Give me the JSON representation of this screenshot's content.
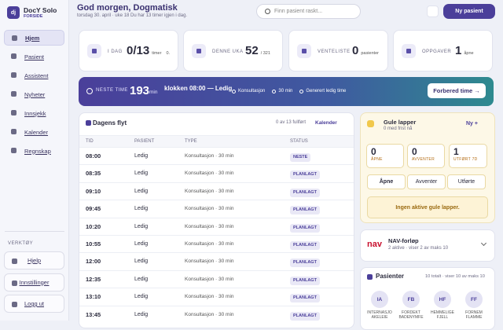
{
  "sidebar": {
    "logo": "dj",
    "app_name": "DocY Solo",
    "section": "FORSIDE",
    "nav": [
      "Hjem",
      "Pasient",
      "Assistent",
      "Nyheter",
      "Innsjekk",
      "Kalender",
      "Regnskap"
    ],
    "tools_heading": "VERKTØY",
    "tools": [
      "Hjelp",
      "Innstillinger",
      "Logg ut"
    ]
  },
  "header": {
    "greeting": "God morgen, Dogmatisk",
    "subtitle": "torsdag 30. april · uke 18 Du har 13 timer igjen i dag.",
    "search_placeholder": "Finn pasient raskt...",
    "new_patient": "Ny pasient"
  },
  "stats": [
    {
      "label": "I DAG",
      "value": "0/13",
      "unit": "timer",
      "extra": "0."
    },
    {
      "label": "DENNE UKA",
      "value": "52",
      "unit": "/ 321"
    },
    {
      "label": "VENTELISTE",
      "value": "0",
      "unit": "pasienter"
    },
    {
      "label": "OPPGAVER",
      "value": "1",
      "unit": "åpne"
    }
  ],
  "next": {
    "label": "NESTE TIME",
    "minutes": "193",
    "unit": "min",
    "title": "klokken 08:00 — Ledig",
    "tags": [
      "Konsultasjon",
      "30 min",
      "Generert ledig time"
    ],
    "button": "Forbered time →"
  },
  "flow": {
    "title": "Dagens flyt",
    "progress": "0 av 13 fullført",
    "calendar_link": "Kalender",
    "columns": [
      "TID",
      "PASIENT",
      "TYPE",
      "STATUS"
    ],
    "rows": [
      [
        "08:00",
        "Ledig",
        "Konsultasjon · 30 min",
        "NESTE"
      ],
      [
        "08:35",
        "Ledig",
        "Konsultasjon · 30 min",
        "PLANLAGT"
      ],
      [
        "09:10",
        "Ledig",
        "Konsultasjon · 30 min",
        "PLANLAGT"
      ],
      [
        "09:45",
        "Ledig",
        "Konsultasjon · 30 min",
        "PLANLAGT"
      ],
      [
        "10:20",
        "Ledig",
        "Konsultasjon · 30 min",
        "PLANLAGT"
      ],
      [
        "10:55",
        "Ledig",
        "Konsultasjon · 30 min",
        "PLANLAGT"
      ],
      [
        "12:00",
        "Ledig",
        "Konsultasjon · 30 min",
        "PLANLAGT"
      ],
      [
        "12:35",
        "Ledig",
        "Konsultasjon · 30 min",
        "PLANLAGT"
      ],
      [
        "13:10",
        "Ledig",
        "Konsultasjon · 30 min",
        "PLANLAGT"
      ],
      [
        "13:45",
        "Ledig",
        "Konsultasjon · 30 min",
        "PLANLAGT"
      ]
    ]
  },
  "notes": {
    "title": "Gule lapper",
    "subtitle": "0 med frist nå",
    "new": "Ny +",
    "counters": [
      {
        "value": "0",
        "label": "ÅPNE"
      },
      {
        "value": "0",
        "label": "AVVENTER"
      },
      {
        "value": "1",
        "label": "UTFØRT 7D"
      }
    ],
    "tabs": [
      "Åpne",
      "Avventer",
      "Utførte"
    ],
    "empty": "Ingen aktive gule lapper."
  },
  "nav_card": {
    "logo": "nav",
    "title": "NAV-forløp",
    "subtitle": "2 aktive · viser 2 av maks 10"
  },
  "patients": {
    "title": "Pasienter",
    "subtitle": "10 totalt · viser 10 av maks 10",
    "list": [
      {
        "initials": "IA",
        "name": "INTERNASJO AKELEIE"
      },
      {
        "initials": "FB",
        "name": "FORDEKT BADENYMFE"
      },
      {
        "initials": "HF",
        "name": "HEMMELIGE FJELL"
      },
      {
        "initials": "FF",
        "name": "FORNEM FLAMME"
      }
    ]
  }
}
